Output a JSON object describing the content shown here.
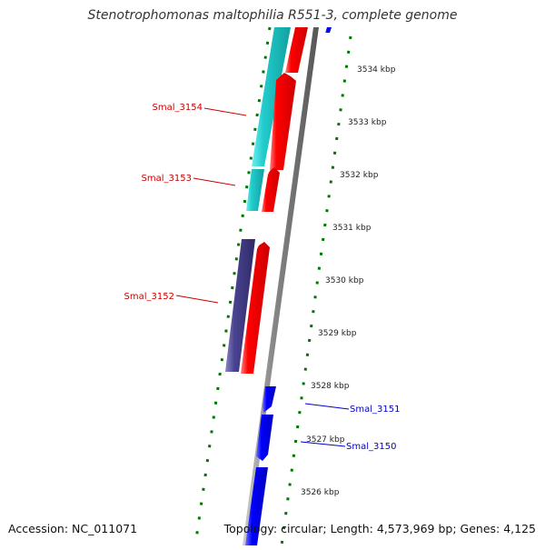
{
  "title": "Stenotrophomonas maltophilia R551-3, complete genome",
  "footer": {
    "accession": "Accession: NC_011071",
    "topology": "Topology: circular; Length: 4,573,969 bp; Genes: 4,125"
  },
  "scale_labels": [
    "3534 kbp",
    "3533 kbp",
    "3532 kbp",
    "3531 kbp",
    "3530 kbp",
    "3529 kbp",
    "3528 kbp",
    "3527 kbp",
    "3526 kbp"
  ],
  "gene_labels": [
    {
      "name": "Smal_3154",
      "color": "#cc0000"
    },
    {
      "name": "Smal_3153",
      "color": "#cc0000"
    },
    {
      "name": "Smal_3152",
      "color": "#cc0000"
    },
    {
      "name": "Smal_3151",
      "color": "#0000cc"
    },
    {
      "name": "Smal_3150",
      "color": "#0000cc"
    }
  ],
  "colors": {
    "forward_cds": "#ff0000",
    "reverse_cds": "#0000ff",
    "cyan_feature": "#22cccc",
    "purple_feature": "#4a4490",
    "backbone": "#888888",
    "ticks": "#007700"
  }
}
